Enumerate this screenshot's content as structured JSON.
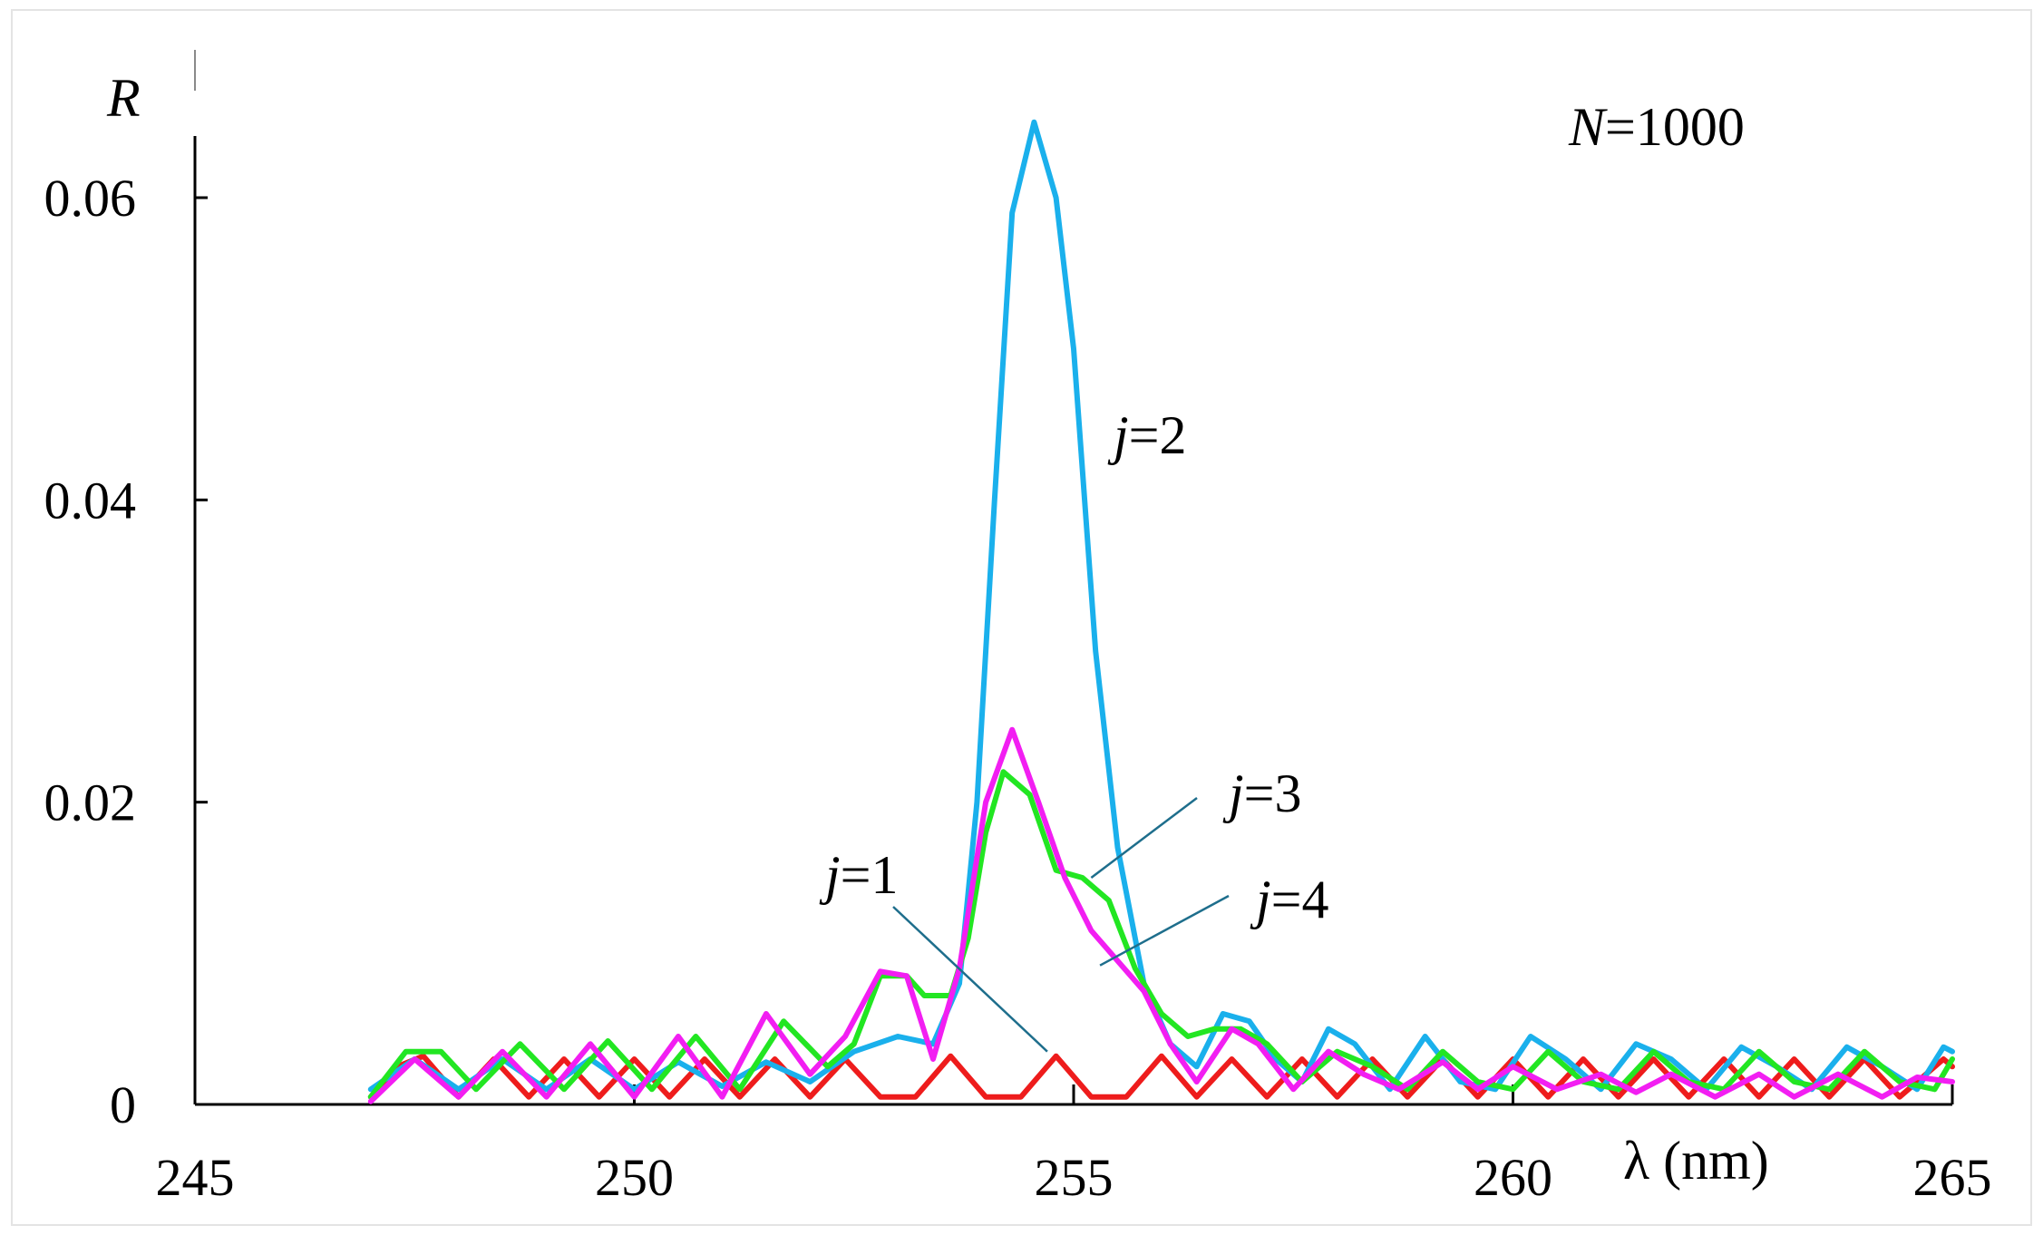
{
  "chart_data": {
    "type": "line",
    "title": "",
    "annotation_top_right": {
      "var": "N",
      "rest": "=1000"
    },
    "xlabel": "λ (nm)",
    "ylabel": "R",
    "xlim": [
      245,
      265
    ],
    "ylim": [
      0,
      0.065
    ],
    "x_ticks": [
      245,
      250,
      255,
      260,
      265
    ],
    "x_tick_labels": [
      "245",
      "250",
      "255",
      "260",
      "265"
    ],
    "y_ticks": [
      0,
      0.02,
      0.04,
      0.06
    ],
    "y_tick_labels": [
      "0",
      "0.02",
      "0.04",
      "0.06"
    ],
    "grid": false,
    "colors": {
      "j1": "#ee1c1c",
      "j2": "#1ab0ec",
      "j3": "#22e622",
      "j4": "#f21ef2",
      "leader": "#1e6e8c"
    },
    "series": [
      {
        "name": "j=1",
        "label_var": "j",
        "label_rest": "=1",
        "color": "#ee1c1c",
        "points": [
          [
            247.0,
            0.0005
          ],
          [
            247.3,
            0.0025
          ],
          [
            247.6,
            0.0032
          ],
          [
            248.0,
            0.0005
          ],
          [
            248.4,
            0.003
          ],
          [
            248.8,
            0.0005
          ],
          [
            249.2,
            0.003
          ],
          [
            249.6,
            0.0005
          ],
          [
            250.0,
            0.003
          ],
          [
            250.4,
            0.0005
          ],
          [
            250.8,
            0.003
          ],
          [
            251.2,
            0.0005
          ],
          [
            251.6,
            0.003
          ],
          [
            252.0,
            0.0005
          ],
          [
            252.4,
            0.003
          ],
          [
            252.8,
            0.0005
          ],
          [
            253.2,
            0.0005
          ],
          [
            253.6,
            0.0032
          ],
          [
            254.0,
            0.0005
          ],
          [
            254.4,
            0.0005
          ],
          [
            254.8,
            0.0032
          ],
          [
            255.2,
            0.0005
          ],
          [
            255.6,
            0.0005
          ],
          [
            256.0,
            0.0032
          ],
          [
            256.4,
            0.0005
          ],
          [
            256.8,
            0.003
          ],
          [
            257.2,
            0.0005
          ],
          [
            257.6,
            0.003
          ],
          [
            258.0,
            0.0005
          ],
          [
            258.4,
            0.003
          ],
          [
            258.8,
            0.0005
          ],
          [
            259.2,
            0.003
          ],
          [
            259.6,
            0.0005
          ],
          [
            260.0,
            0.003
          ],
          [
            260.4,
            0.0005
          ],
          [
            260.8,
            0.003
          ],
          [
            261.2,
            0.0005
          ],
          [
            261.6,
            0.003
          ],
          [
            262.0,
            0.0005
          ],
          [
            262.4,
            0.003
          ],
          [
            262.8,
            0.0005
          ],
          [
            263.2,
            0.003
          ],
          [
            263.6,
            0.0005
          ],
          [
            264.0,
            0.003
          ],
          [
            264.4,
            0.0005
          ],
          [
            264.9,
            0.003
          ],
          [
            265.0,
            0.0025
          ]
        ]
      },
      {
        "name": "j=2",
        "label_var": "j",
        "label_rest": "=2",
        "color": "#1ab0ec",
        "points": [
          [
            247.0,
            0.001
          ],
          [
            247.5,
            0.003
          ],
          [
            248.0,
            0.001
          ],
          [
            248.5,
            0.003
          ],
          [
            249.0,
            0.001
          ],
          [
            249.5,
            0.003
          ],
          [
            250.0,
            0.001
          ],
          [
            250.5,
            0.0028
          ],
          [
            251.0,
            0.0012
          ],
          [
            251.5,
            0.0028
          ],
          [
            252.0,
            0.0015
          ],
          [
            252.5,
            0.0035
          ],
          [
            253.0,
            0.0045
          ],
          [
            253.4,
            0.004
          ],
          [
            253.7,
            0.008
          ],
          [
            253.9,
            0.02
          ],
          [
            254.1,
            0.04
          ],
          [
            254.3,
            0.059
          ],
          [
            254.55,
            0.065
          ],
          [
            254.8,
            0.06
          ],
          [
            255.0,
            0.05
          ],
          [
            255.25,
            0.03
          ],
          [
            255.5,
            0.017
          ],
          [
            255.8,
            0.008
          ],
          [
            256.1,
            0.004
          ],
          [
            256.4,
            0.0025
          ],
          [
            256.7,
            0.006
          ],
          [
            257.0,
            0.0055
          ],
          [
            257.3,
            0.003
          ],
          [
            257.6,
            0.0015
          ],
          [
            257.9,
            0.005
          ],
          [
            258.2,
            0.004
          ],
          [
            258.6,
            0.001
          ],
          [
            259.0,
            0.0045
          ],
          [
            259.4,
            0.0015
          ],
          [
            259.8,
            0.001
          ],
          [
            260.2,
            0.0045
          ],
          [
            260.6,
            0.003
          ],
          [
            261.0,
            0.001
          ],
          [
            261.4,
            0.004
          ],
          [
            261.8,
            0.003
          ],
          [
            262.2,
            0.001
          ],
          [
            262.6,
            0.0038
          ],
          [
            263.0,
            0.0025
          ],
          [
            263.4,
            0.001
          ],
          [
            263.8,
            0.0038
          ],
          [
            264.2,
            0.0025
          ],
          [
            264.6,
            0.001
          ],
          [
            264.9,
            0.0038
          ],
          [
            265.0,
            0.0035
          ]
        ]
      },
      {
        "name": "j=3",
        "label_var": "j",
        "label_rest": "=3",
        "color": "#22e622",
        "points": [
          [
            247.0,
            0.0005
          ],
          [
            247.4,
            0.0035
          ],
          [
            247.8,
            0.0035
          ],
          [
            248.2,
            0.001
          ],
          [
            248.7,
            0.004
          ],
          [
            249.2,
            0.001
          ],
          [
            249.7,
            0.0042
          ],
          [
            250.2,
            0.001
          ],
          [
            250.7,
            0.0045
          ],
          [
            251.2,
            0.001
          ],
          [
            251.7,
            0.0055
          ],
          [
            252.2,
            0.0025
          ],
          [
            252.5,
            0.004
          ],
          [
            252.8,
            0.0085
          ],
          [
            253.1,
            0.0085
          ],
          [
            253.3,
            0.0072
          ],
          [
            253.6,
            0.0072
          ],
          [
            253.8,
            0.011
          ],
          [
            254.0,
            0.018
          ],
          [
            254.2,
            0.022
          ],
          [
            254.5,
            0.0205
          ],
          [
            254.8,
            0.0155
          ],
          [
            255.1,
            0.015
          ],
          [
            255.4,
            0.0135
          ],
          [
            255.7,
            0.009
          ],
          [
            256.0,
            0.006
          ],
          [
            256.3,
            0.0045
          ],
          [
            256.6,
            0.005
          ],
          [
            256.9,
            0.005
          ],
          [
            257.2,
            0.004
          ],
          [
            257.6,
            0.0015
          ],
          [
            258.0,
            0.0035
          ],
          [
            258.4,
            0.0025
          ],
          [
            258.8,
            0.001
          ],
          [
            259.2,
            0.0035
          ],
          [
            259.6,
            0.0015
          ],
          [
            260.0,
            0.001
          ],
          [
            260.4,
            0.0035
          ],
          [
            260.8,
            0.0015
          ],
          [
            261.2,
            0.001
          ],
          [
            261.6,
            0.0035
          ],
          [
            262.0,
            0.0015
          ],
          [
            262.4,
            0.001
          ],
          [
            262.8,
            0.0035
          ],
          [
            263.2,
            0.0015
          ],
          [
            263.6,
            0.001
          ],
          [
            264.0,
            0.0035
          ],
          [
            264.4,
            0.0015
          ],
          [
            264.8,
            0.001
          ],
          [
            265.0,
            0.003
          ]
        ]
      },
      {
        "name": "j=4",
        "label_var": "j",
        "label_rest": "=4",
        "color": "#f21ef2",
        "points": [
          [
            247.0,
            0.0002
          ],
          [
            247.5,
            0.003
          ],
          [
            248.0,
            0.0005
          ],
          [
            248.5,
            0.0035
          ],
          [
            249.0,
            0.0005
          ],
          [
            249.5,
            0.004
          ],
          [
            250.0,
            0.0005
          ],
          [
            250.5,
            0.0045
          ],
          [
            251.0,
            0.0005
          ],
          [
            251.5,
            0.006
          ],
          [
            252.0,
            0.002
          ],
          [
            252.4,
            0.0045
          ],
          [
            252.8,
            0.0088
          ],
          [
            253.1,
            0.0085
          ],
          [
            253.4,
            0.003
          ],
          [
            253.7,
            0.009
          ],
          [
            254.0,
            0.02
          ],
          [
            254.3,
            0.0248
          ],
          [
            254.6,
            0.02
          ],
          [
            254.9,
            0.015
          ],
          [
            255.2,
            0.0115
          ],
          [
            255.5,
            0.0095
          ],
          [
            255.8,
            0.0075
          ],
          [
            256.1,
            0.004
          ],
          [
            256.4,
            0.0015
          ],
          [
            256.8,
            0.005
          ],
          [
            257.1,
            0.004
          ],
          [
            257.5,
            0.001
          ],
          [
            257.9,
            0.0035
          ],
          [
            258.3,
            0.002
          ],
          [
            258.7,
            0.001
          ],
          [
            259.2,
            0.0028
          ],
          [
            259.6,
            0.001
          ],
          [
            260.0,
            0.0025
          ],
          [
            260.5,
            0.001
          ],
          [
            261.0,
            0.002
          ],
          [
            261.4,
            0.0008
          ],
          [
            261.8,
            0.002
          ],
          [
            262.3,
            0.0005
          ],
          [
            262.8,
            0.002
          ],
          [
            263.2,
            0.0005
          ],
          [
            263.7,
            0.002
          ],
          [
            264.2,
            0.0005
          ],
          [
            264.6,
            0.0018
          ],
          [
            265.0,
            0.0015
          ]
        ]
      }
    ]
  }
}
